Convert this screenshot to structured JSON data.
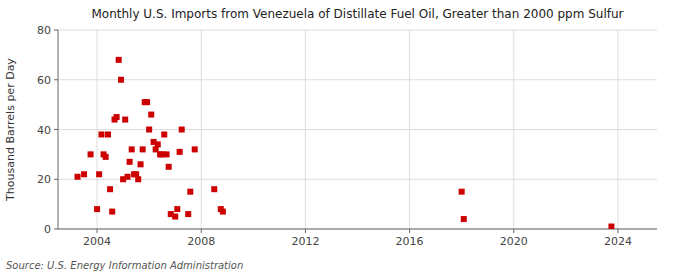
{
  "chart_data": {
    "type": "scatter",
    "title": "Monthly U.S. Imports from Venezuela of Distillate Fuel Oil, Greater than 2000 ppm Sulfur",
    "ylabel": "Thousand Barrels per Day",
    "source": "Source: U.S. Energy Information Administration",
    "color": "#cc0000",
    "marker": "square",
    "grid": true,
    "xlim": [
      2002.5,
      2025.5
    ],
    "ylim": [
      0,
      80
    ],
    "xticks": [
      2004,
      2008,
      2012,
      2016,
      2020,
      2024
    ],
    "yticks": [
      0,
      20,
      40,
      60,
      80
    ],
    "x": [
      2003.25,
      2003.5,
      2003.75,
      2004.0,
      2004.08,
      2004.17,
      2004.25,
      2004.33,
      2004.42,
      2004.5,
      2004.58,
      2004.67,
      2004.75,
      2004.83,
      2004.92,
      2005.0,
      2005.08,
      2005.17,
      2005.25,
      2005.33,
      2005.42,
      2005.5,
      2005.58,
      2005.67,
      2005.75,
      2005.83,
      2005.92,
      2006.0,
      2006.08,
      2006.17,
      2006.25,
      2006.33,
      2006.42,
      2006.5,
      2006.58,
      2006.67,
      2006.75,
      2006.83,
      2007.0,
      2007.08,
      2007.17,
      2007.25,
      2007.5,
      2007.58,
      2007.75,
      2008.5,
      2008.75,
      2008.83,
      2018.0,
      2018.08,
      2023.75
    ],
    "values": [
      21,
      22,
      30,
      8,
      22,
      38,
      30,
      29,
      38,
      16,
      7,
      44,
      45,
      68,
      60,
      20,
      44,
      21,
      27,
      32,
      22,
      22,
      20,
      26,
      32,
      51,
      51,
      40,
      46,
      35,
      32,
      34,
      30,
      30,
      38,
      30,
      25,
      6,
      5,
      8,
      31,
      40,
      6,
      15,
      32,
      16,
      8,
      7,
      15,
      4,
      1
    ]
  }
}
